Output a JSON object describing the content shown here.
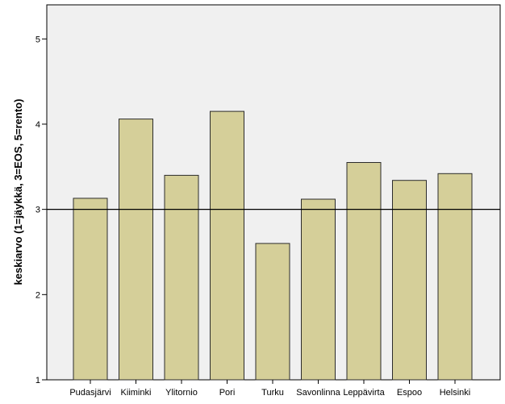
{
  "chart_data": {
    "type": "bar",
    "title": "",
    "xlabel": "",
    "ylabel": "keskiarvo (1=jäykkä, 3=EOS, 5=rento)",
    "categories": [
      "Pudasjärvi",
      "Kiiminki",
      "Ylitornio",
      "Pori",
      "Turku",
      "Savonlinna",
      "Leppävirta",
      "Espoo",
      "Helsinki"
    ],
    "values": [
      3.13,
      4.06,
      3.4,
      4.15,
      2.6,
      3.12,
      3.55,
      3.34,
      3.42
    ],
    "ylim": [
      1,
      5.4
    ],
    "yticks": [
      1,
      2,
      3,
      4,
      5
    ],
    "reference_line": 3,
    "grid": false,
    "colors": {
      "bar_fill": "#d5cf99",
      "bar_stroke": "#2b2b2b",
      "plot_background": "#f0f0f0",
      "axis": "#000000"
    }
  }
}
